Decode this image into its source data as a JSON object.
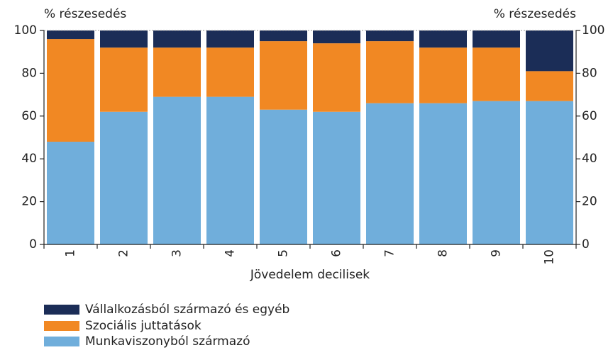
{
  "chart_data": {
    "type": "stacked_bar",
    "y_label": "% részesedés",
    "y2_label": "% részesedés",
    "x_label": "Jövedelem decilisek",
    "categories": [
      "1",
      "2",
      "3",
      "4",
      "5",
      "6",
      "7",
      "8",
      "9",
      "10"
    ],
    "series": [
      {
        "name": "Munkaviszonyból származó",
        "color": "#70aedb",
        "values": [
          48,
          62,
          69,
          69,
          63,
          62,
          66,
          66,
          67,
          67
        ]
      },
      {
        "name": "Szociális juttatások",
        "color": "#f18823",
        "values": [
          48,
          30,
          23,
          23,
          32,
          32,
          29,
          26,
          25,
          14
        ]
      },
      {
        "name": "Vállalkozásból származó és egyéb",
        "color": "#1b2d57",
        "values": [
          4,
          8,
          8,
          8,
          5,
          6,
          5,
          8,
          8,
          19
        ]
      }
    ],
    "ylim": [
      0,
      100
    ],
    "yticks": [
      0,
      20,
      40,
      60,
      80,
      100
    ],
    "y2lim": [
      0,
      100
    ],
    "y2ticks": [
      0,
      20,
      40,
      60,
      80,
      100
    ]
  }
}
